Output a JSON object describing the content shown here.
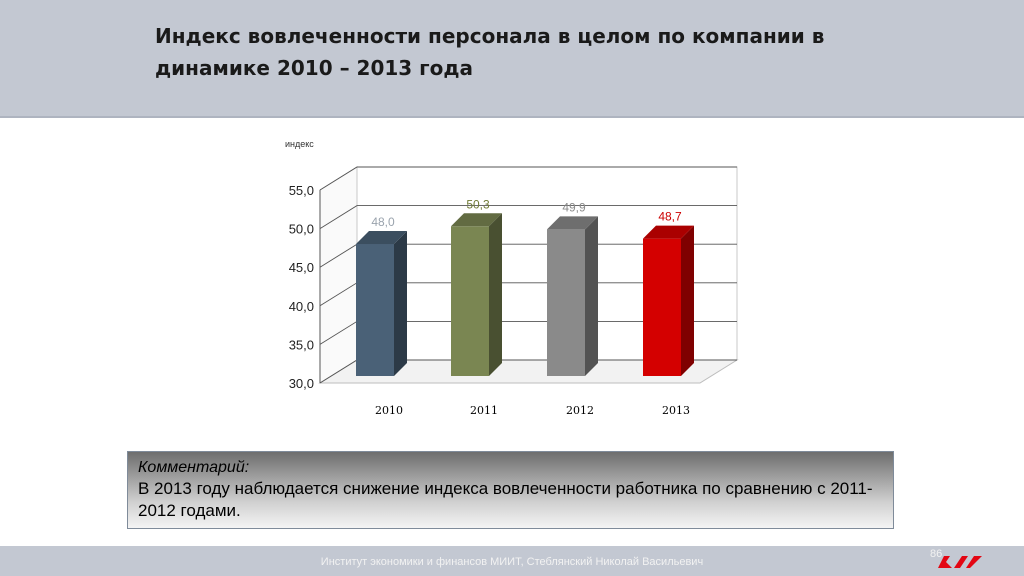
{
  "slide": {
    "title": "Индекс вовлеченности персонала в целом по компании в динамике 2010 – 2013 года",
    "comment_heading": "Комментарий:",
    "comment_text": "В 2013 году наблюдается снижение индекса вовлеченности работника по сравнению с 2011-2012 годами.",
    "footer_text": "Институт экономики и финансов МИИТ, Стеблянский Николай Васильевич",
    "page_number": "86",
    "logo_icon": "rzd-logo-icon"
  },
  "chart_data": {
    "type": "bar",
    "ylabel": "индекс",
    "categories": [
      "2010",
      "2011",
      "2012",
      "2013"
    ],
    "values": [
      48.0,
      50.3,
      49.9,
      48.7
    ],
    "value_labels": [
      "48,0",
      "50,3",
      "49,9",
      "48,7"
    ],
    "ylim": [
      30,
      55
    ],
    "yticks": [
      "30,0",
      "35,0",
      "40,0",
      "45,0",
      "50,0",
      "55,0"
    ],
    "grid": true,
    "legend": "none",
    "colors": [
      "#4a6177",
      "#7a8652",
      "#8a8a8a",
      "#d40000"
    ],
    "label_colors": [
      "#9aa3ad",
      "#6f7a35",
      "#8c8c8c",
      "#cc0000"
    ]
  }
}
